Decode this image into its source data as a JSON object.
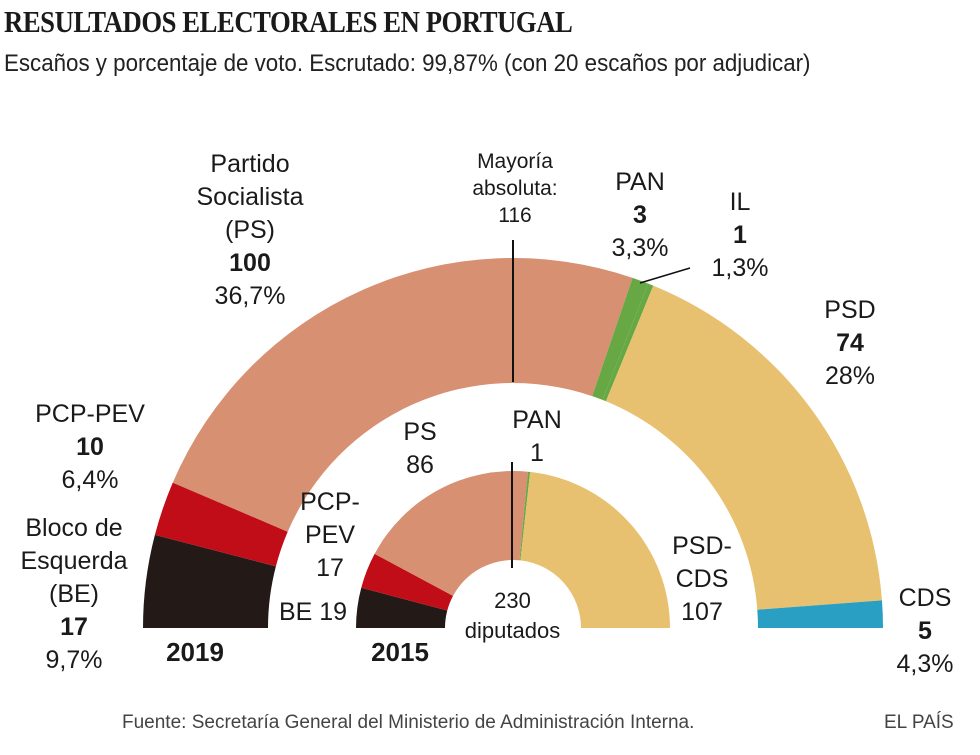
{
  "title": "RESULTADOS ELECTORALES EN PORTUGAL",
  "subtitle": "Escaños y porcentaje de voto. Escrutado: 99,87% (con 20 escaños por adjudicar)",
  "source": "Fuente: Secretaría General del Ministerio de Administración Interna.",
  "brand": "EL PAÍS",
  "chart_data": [
    {
      "type": "pie",
      "subtype": "semicircle",
      "label": "2019",
      "majority_label": [
        "Mayoría",
        "absoluta:",
        "116"
      ],
      "categories": [
        "BE",
        "PCP-PEV",
        "PS",
        "PAN",
        "IL",
        "PSD",
        "CDS"
      ],
      "values": [
        17,
        10,
        100,
        3,
        1,
        74,
        5
      ],
      "pct": [
        "9,7%",
        "6,4%",
        "36,7%",
        "3,3%",
        "1,3%",
        "28%",
        "4,3%"
      ],
      "names": [
        [
          "Bloco de",
          "Esquerda",
          "(BE)"
        ],
        [
          "PCP-PEV"
        ],
        [
          "Partido",
          "Socialista",
          "(PS)"
        ],
        [
          "PAN"
        ],
        [
          "IL"
        ],
        [
          "PSD"
        ],
        [
          "CDS"
        ]
      ],
      "colors": [
        "#231a17",
        "#c10d17",
        "#d79072",
        "#67a845",
        "#67a845",
        "#e8c170",
        "#2a9fc4"
      ]
    },
    {
      "type": "pie",
      "subtype": "semicircle",
      "label": "2015",
      "center_label": [
        "230",
        "diputados"
      ],
      "categories": [
        "BE",
        "PCP-PEV",
        "PS",
        "PAN",
        "PSD-CDS"
      ],
      "values": [
        19,
        17,
        86,
        1,
        107
      ],
      "names": [
        [
          "BE"
        ],
        [
          "PCP-",
          "PEV"
        ],
        [
          "PS"
        ],
        [
          "PAN"
        ],
        [
          "PSD-",
          "CDS"
        ]
      ],
      "colors": [
        "#231a17",
        "#c10d17",
        "#d79072",
        "#67a845",
        "#e8c170"
      ]
    }
  ]
}
